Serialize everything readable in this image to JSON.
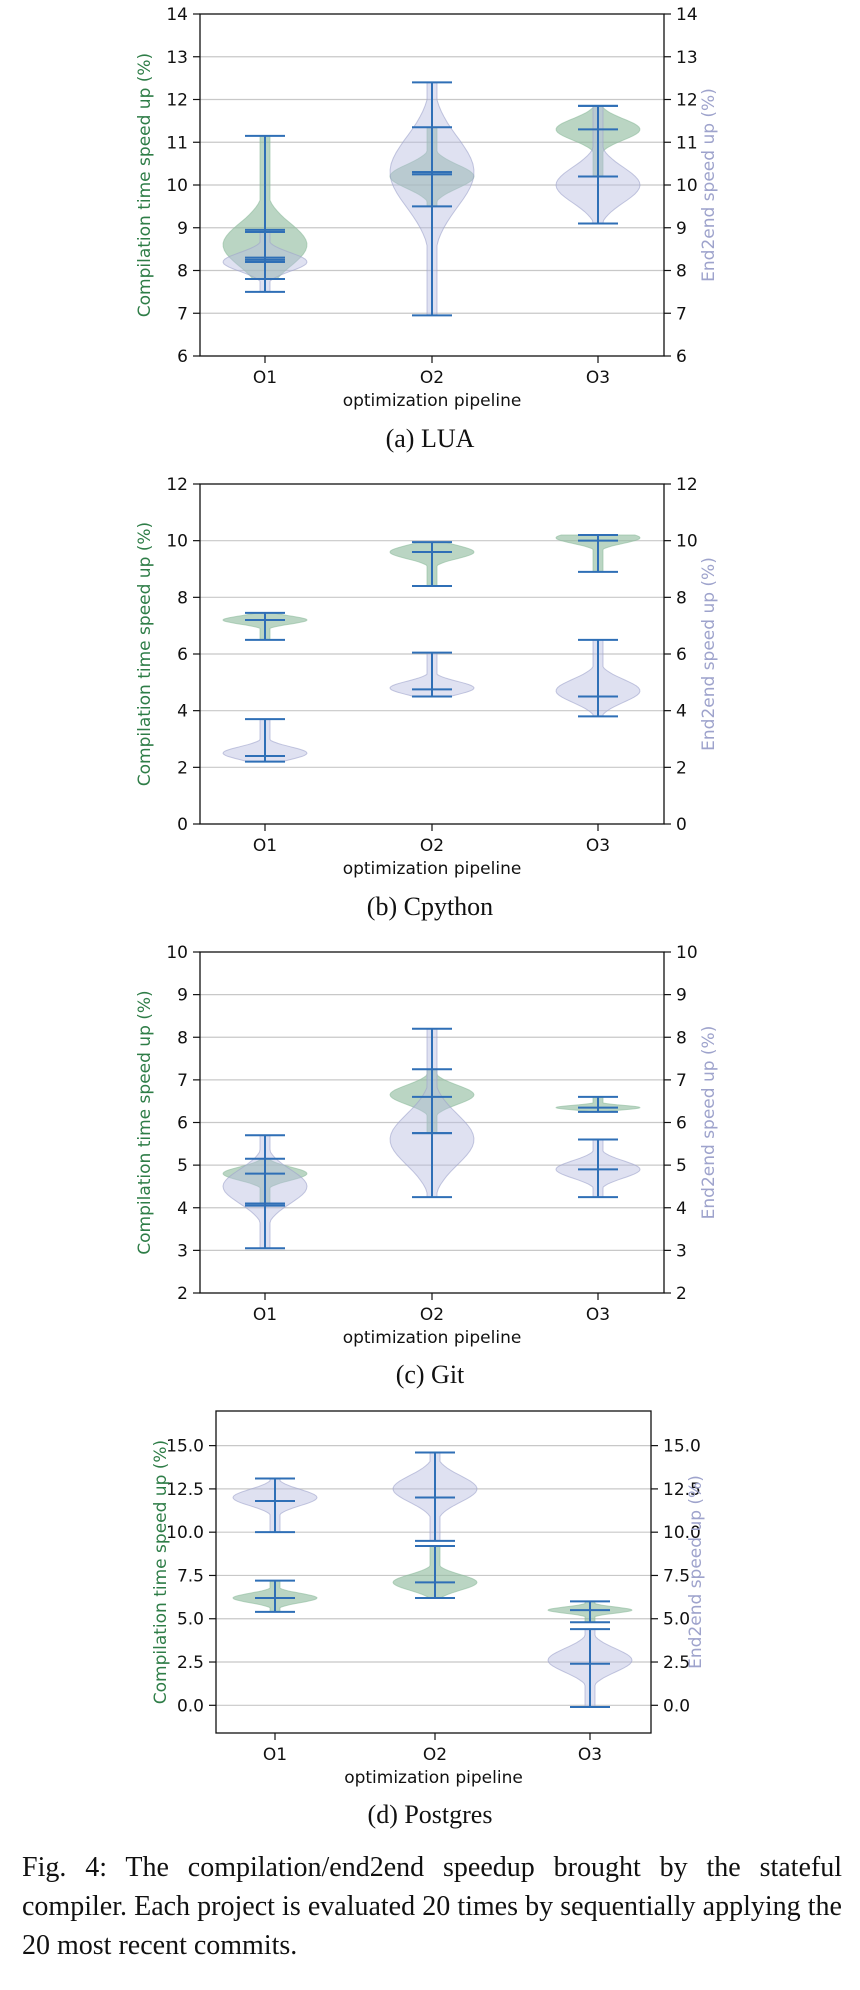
{
  "colors": {
    "compilation": "#2e7d47",
    "compilation_fill": "#8fbc9e",
    "end2end": "#9ea3cc",
    "end2end_fill": "#b9bddf",
    "stats": "#2f6fb6",
    "axis": "#111111",
    "grid": "#c8c8c8"
  },
  "caption": "Fig. 4: The compilation/end2end speedup brought by the stateful compiler. Each project is evaluated 20 times by sequentially applying the 20 most recent commits.",
  "chart_data": [
    {
      "type": "violin",
      "subcaption": "(a) LUA",
      "categories": [
        "O1",
        "O2",
        "O3"
      ],
      "xlabel": "optimization pipeline",
      "ylabel_left": "Compilation time speed up (%)",
      "ylabel_right": "End2end speed up (%)",
      "ylim": [
        6,
        14
      ],
      "yticks": [
        "6",
        "7",
        "8",
        "9",
        "10",
        "11",
        "12",
        "13",
        "14"
      ],
      "grid": true,
      "series": [
        {
          "axis": "left",
          "color": "compilation",
          "stats": [
            {
              "min": 7.8,
              "mean": 8.2,
              "median": 8.9,
              "max": 11.15,
              "peak": 8.6
            },
            {
              "min": 9.5,
              "mean": 10.25,
              "median": 10.3,
              "max": 11.35,
              "peak": 10.2
            },
            {
              "min": 10.2,
              "mean": 11.3,
              "median": 11.3,
              "max": 11.85,
              "peak": 11.3
            }
          ]
        },
        {
          "axis": "right",
          "color": "end2end",
          "stats": [
            {
              "min": 7.5,
              "mean": 8.25,
              "median": 8.3,
              "max": 8.95,
              "peak": 8.2
            },
            {
              "min": 6.95,
              "mean": 10.3,
              "median": 10.3,
              "max": 12.4,
              "peak": 10.3
            },
            {
              "min": 9.1,
              "mean": 10.2,
              "median": 10.2,
              "max": 11.85,
              "peak": 10.0
            }
          ]
        }
      ]
    },
    {
      "type": "violin",
      "subcaption": "(b) Cpython",
      "categories": [
        "O1",
        "O2",
        "O3"
      ],
      "xlabel": "optimization pipeline",
      "ylabel_left": "Compilation time speed up (%)",
      "ylabel_right": "End2end speed up (%)",
      "ylim": [
        0,
        12
      ],
      "yticks": [
        "0",
        "2",
        "4",
        "6",
        "8",
        "10",
        "12"
      ],
      "grid": true,
      "series": [
        {
          "axis": "left",
          "color": "compilation",
          "stats": [
            {
              "min": 6.5,
              "mean": 7.2,
              "median": 7.2,
              "max": 7.45,
              "peak": 7.2
            },
            {
              "min": 8.4,
              "mean": 9.6,
              "median": 9.6,
              "max": 9.95,
              "peak": 9.6
            },
            {
              "min": 8.9,
              "mean": 10.0,
              "median": 10.0,
              "max": 10.2,
              "peak": 10.1
            }
          ]
        },
        {
          "axis": "right",
          "color": "end2end",
          "stats": [
            {
              "min": 2.2,
              "mean": 2.4,
              "median": 2.4,
              "max": 3.7,
              "peak": 2.5
            },
            {
              "min": 4.5,
              "mean": 4.75,
              "median": 4.75,
              "max": 6.05,
              "peak": 4.8
            },
            {
              "min": 3.8,
              "mean": 4.5,
              "median": 4.5,
              "max": 6.5,
              "peak": 4.7
            }
          ]
        }
      ]
    },
    {
      "type": "violin",
      "subcaption": "(c) Git",
      "categories": [
        "O1",
        "O2",
        "O3"
      ],
      "xlabel": "optimization pipeline",
      "ylabel_left": "Compilation time speed up (%)",
      "ylabel_right": "End2end speed up (%)",
      "ylim": [
        2,
        10
      ],
      "yticks": [
        "2",
        "3",
        "4",
        "5",
        "6",
        "7",
        "8",
        "9",
        "10"
      ],
      "grid": true,
      "series": [
        {
          "axis": "left",
          "color": "compilation",
          "stats": [
            {
              "min": 4.1,
              "mean": 4.8,
              "median": 4.8,
              "max": 5.15,
              "peak": 4.8
            },
            {
              "min": 5.75,
              "mean": 6.6,
              "median": 6.6,
              "max": 7.25,
              "peak": 6.65
            },
            {
              "min": 6.25,
              "mean": 6.35,
              "median": 6.35,
              "max": 6.6,
              "peak": 6.35
            }
          ]
        },
        {
          "axis": "right",
          "color": "end2end",
          "stats": [
            {
              "min": 3.05,
              "mean": 4.05,
              "median": 4.05,
              "max": 5.7,
              "peak": 4.5
            },
            {
              "min": 4.25,
              "mean": 5.75,
              "median": 5.75,
              "max": 8.2,
              "peak": 5.6
            },
            {
              "min": 4.25,
              "mean": 4.9,
              "median": 4.9,
              "max": 5.6,
              "peak": 4.9
            }
          ]
        }
      ]
    },
    {
      "type": "violin",
      "subcaption": "(d) Postgres",
      "categories": [
        "O1",
        "O2",
        "O3"
      ],
      "xlabel": "optimization pipeline",
      "ylabel_left": "Compilation time speed up (%)",
      "ylabel_right": "End2end speed up (%)",
      "ylim": [
        -1.6,
        17
      ],
      "yticks": [
        "0.0",
        "2.5",
        "5.0",
        "7.5",
        "10.0",
        "12.5",
        "15.0"
      ],
      "grid": true,
      "series": [
        {
          "axis": "left",
          "color": "compilation",
          "stats": [
            {
              "min": 5.4,
              "mean": 6.2,
              "median": 6.2,
              "max": 7.2,
              "peak": 6.2
            },
            {
              "min": 6.2,
              "mean": 7.1,
              "median": 7.1,
              "max": 9.2,
              "peak": 7.1
            },
            {
              "min": 4.8,
              "mean": 5.5,
              "median": 5.5,
              "max": 6.0,
              "peak": 5.5
            }
          ]
        },
        {
          "axis": "right",
          "color": "end2end",
          "stats": [
            {
              "min": 10.0,
              "mean": 11.8,
              "median": 11.8,
              "max": 13.1,
              "peak": 12.0
            },
            {
              "min": 9.5,
              "mean": 12.0,
              "median": 12.0,
              "max": 14.6,
              "peak": 12.5
            },
            {
              "min": -0.1,
              "mean": 2.4,
              "median": 2.4,
              "max": 4.4,
              "peak": 2.6
            }
          ]
        }
      ]
    }
  ]
}
